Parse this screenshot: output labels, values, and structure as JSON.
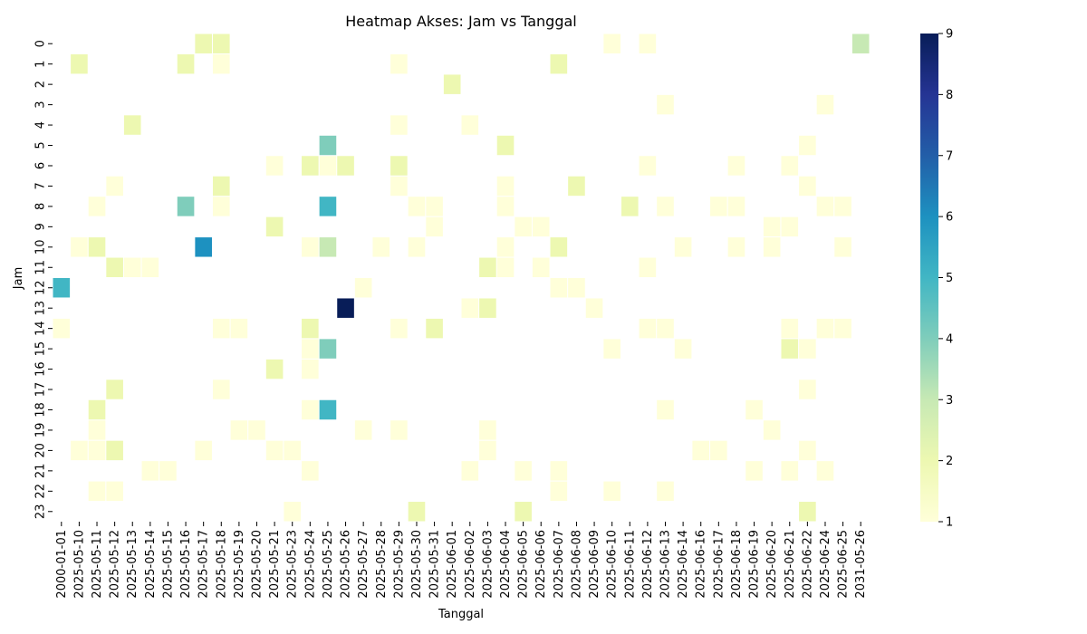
{
  "chart_data": {
    "type": "heatmap",
    "title": "Heatmap Akses: Jam vs Tanggal",
    "xlabel": "Tanggal",
    "ylabel": "Jam",
    "x_categories": [
      "2000-01-01",
      "2025-05-10",
      "2025-05-11",
      "2025-05-12",
      "2025-05-13",
      "2025-05-14",
      "2025-05-15",
      "2025-05-16",
      "2025-05-17",
      "2025-05-18",
      "2025-05-19",
      "2025-05-20",
      "2025-05-21",
      "2025-05-23",
      "2025-05-24",
      "2025-05-25",
      "2025-05-26",
      "2025-05-27",
      "2025-05-28",
      "2025-05-29",
      "2025-05-30",
      "2025-05-31",
      "2025-06-01",
      "2025-06-02",
      "2025-06-03",
      "2025-06-04",
      "2025-06-05",
      "2025-06-06",
      "2025-06-07",
      "2025-06-08",
      "2025-06-09",
      "2025-06-10",
      "2025-06-11",
      "2025-06-12",
      "2025-06-13",
      "2025-06-14",
      "2025-06-16",
      "2025-06-17",
      "2025-06-18",
      "2025-06-19",
      "2025-06-20",
      "2025-06-21",
      "2025-06-22",
      "2025-06-24",
      "2025-06-25",
      "2031-05-26"
    ],
    "y_categories": [
      "0",
      "1",
      "2",
      "3",
      "4",
      "5",
      "6",
      "7",
      "8",
      "9",
      "10",
      "11",
      "12",
      "13",
      "14",
      "15",
      "16",
      "17",
      "18",
      "19",
      "20",
      "21",
      "22",
      "23"
    ],
    "colorbar": {
      "min": 1,
      "max": 9,
      "ticks": [
        1,
        2,
        3,
        4,
        5,
        6,
        7,
        8,
        9
      ],
      "colormap": "YlGnBu"
    },
    "grid": false,
    "cells": [
      [
        8,
        0,
        2
      ],
      [
        9,
        0,
        2
      ],
      [
        31,
        0,
        1
      ],
      [
        33,
        0,
        1
      ],
      [
        45,
        0,
        3
      ],
      [
        1,
        1,
        2
      ],
      [
        7,
        1,
        2
      ],
      [
        9,
        1,
        1
      ],
      [
        19,
        1,
        1
      ],
      [
        28,
        1,
        2
      ],
      [
        22,
        2,
        2
      ],
      [
        34,
        3,
        1
      ],
      [
        43,
        3,
        1
      ],
      [
        4,
        4,
        2
      ],
      [
        19,
        4,
        1
      ],
      [
        23,
        4,
        1
      ],
      [
        15,
        5,
        4
      ],
      [
        25,
        5,
        2
      ],
      [
        42,
        5,
        1
      ],
      [
        12,
        6,
        1
      ],
      [
        14,
        6,
        2
      ],
      [
        15,
        6,
        1
      ],
      [
        16,
        6,
        2
      ],
      [
        19,
        6,
        2
      ],
      [
        33,
        6,
        1
      ],
      [
        38,
        6,
        1
      ],
      [
        41,
        6,
        1
      ],
      [
        3,
        7,
        1
      ],
      [
        9,
        7,
        2
      ],
      [
        19,
        7,
        1
      ],
      [
        25,
        7,
        1
      ],
      [
        29,
        7,
        2
      ],
      [
        42,
        7,
        1
      ],
      [
        2,
        8,
        1
      ],
      [
        7,
        8,
        4
      ],
      [
        9,
        8,
        1
      ],
      [
        15,
        8,
        5
      ],
      [
        20,
        8,
        1
      ],
      [
        21,
        8,
        1
      ],
      [
        25,
        8,
        1
      ],
      [
        32,
        8,
        2
      ],
      [
        34,
        8,
        1
      ],
      [
        37,
        8,
        1
      ],
      [
        38,
        8,
        1
      ],
      [
        43,
        8,
        1
      ],
      [
        44,
        8,
        1
      ],
      [
        12,
        9,
        2
      ],
      [
        21,
        9,
        1
      ],
      [
        26,
        9,
        1
      ],
      [
        27,
        9,
        1
      ],
      [
        40,
        9,
        1
      ],
      [
        41,
        9,
        1
      ],
      [
        1,
        10,
        1
      ],
      [
        2,
        10,
        2
      ],
      [
        8,
        10,
        6
      ],
      [
        14,
        10,
        1
      ],
      [
        15,
        10,
        3
      ],
      [
        18,
        10,
        1
      ],
      [
        20,
        10,
        1
      ],
      [
        25,
        10,
        1
      ],
      [
        28,
        10,
        2
      ],
      [
        35,
        10,
        1
      ],
      [
        38,
        10,
        1
      ],
      [
        40,
        10,
        1
      ],
      [
        44,
        10,
        1
      ],
      [
        3,
        11,
        2
      ],
      [
        4,
        11,
        1
      ],
      [
        5,
        11,
        1
      ],
      [
        24,
        11,
        2
      ],
      [
        25,
        11,
        1
      ],
      [
        27,
        11,
        1
      ],
      [
        33,
        11,
        1
      ],
      [
        0,
        12,
        5
      ],
      [
        17,
        12,
        1
      ],
      [
        28,
        12,
        1
      ],
      [
        29,
        12,
        1
      ],
      [
        16,
        13,
        9
      ],
      [
        23,
        13,
        1
      ],
      [
        24,
        13,
        2
      ],
      [
        30,
        13,
        1
      ],
      [
        0,
        14,
        1
      ],
      [
        9,
        14,
        1
      ],
      [
        10,
        14,
        1
      ],
      [
        14,
        14,
        2
      ],
      [
        19,
        14,
        1
      ],
      [
        21,
        14,
        2
      ],
      [
        33,
        14,
        1
      ],
      [
        34,
        14,
        1
      ],
      [
        41,
        14,
        1
      ],
      [
        43,
        14,
        1
      ],
      [
        44,
        14,
        1
      ],
      [
        14,
        15,
        1
      ],
      [
        15,
        15,
        4
      ],
      [
        31,
        15,
        1
      ],
      [
        35,
        15,
        1
      ],
      [
        41,
        15,
        2
      ],
      [
        42,
        15,
        1
      ],
      [
        12,
        16,
        2
      ],
      [
        14,
        16,
        1
      ],
      [
        3,
        17,
        2
      ],
      [
        9,
        17,
        1
      ],
      [
        42,
        17,
        1
      ],
      [
        2,
        18,
        2
      ],
      [
        14,
        18,
        1
      ],
      [
        15,
        18,
        5
      ],
      [
        34,
        18,
        1
      ],
      [
        39,
        18,
        1
      ],
      [
        2,
        19,
        1
      ],
      [
        10,
        19,
        1
      ],
      [
        11,
        19,
        1
      ],
      [
        17,
        19,
        1
      ],
      [
        19,
        19,
        1
      ],
      [
        24,
        19,
        1
      ],
      [
        40,
        19,
        1
      ],
      [
        1,
        20,
        1
      ],
      [
        2,
        20,
        1
      ],
      [
        3,
        20,
        2
      ],
      [
        8,
        20,
        1
      ],
      [
        12,
        20,
        1
      ],
      [
        13,
        20,
        1
      ],
      [
        24,
        20,
        1
      ],
      [
        36,
        20,
        1
      ],
      [
        37,
        20,
        1
      ],
      [
        42,
        20,
        1
      ],
      [
        5,
        21,
        1
      ],
      [
        6,
        21,
        1
      ],
      [
        14,
        21,
        1
      ],
      [
        23,
        21,
        1
      ],
      [
        26,
        21,
        1
      ],
      [
        28,
        21,
        1
      ],
      [
        39,
        21,
        1
      ],
      [
        41,
        21,
        1
      ],
      [
        43,
        21,
        1
      ],
      [
        2,
        22,
        1
      ],
      [
        3,
        22,
        1
      ],
      [
        28,
        22,
        1
      ],
      [
        31,
        22,
        1
      ],
      [
        34,
        22,
        1
      ],
      [
        13,
        23,
        1
      ],
      [
        20,
        23,
        2
      ],
      [
        26,
        23,
        2
      ],
      [
        42,
        23,
        2
      ]
    ]
  }
}
